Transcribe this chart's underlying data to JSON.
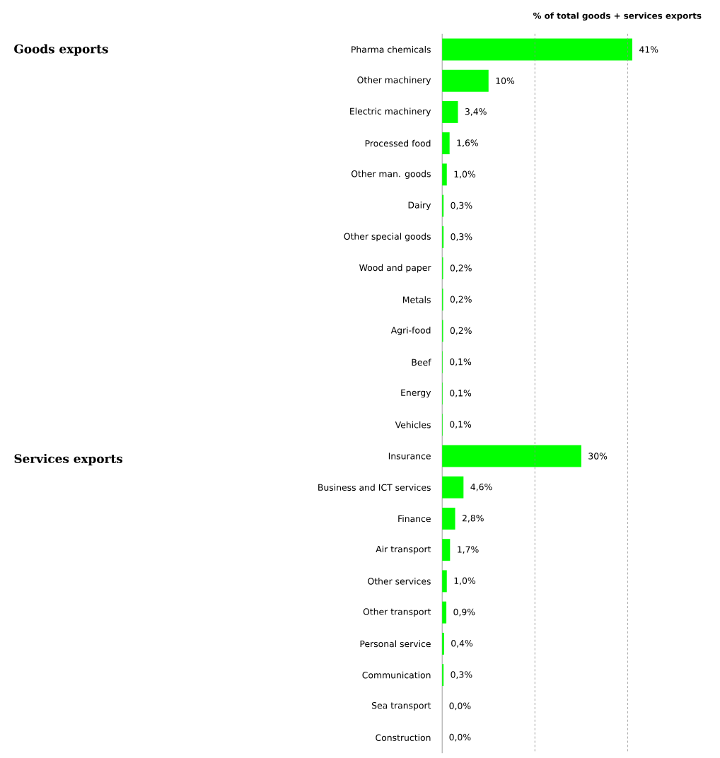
{
  "chart_data": {
    "type": "bar",
    "orientation": "horizontal",
    "title": "% of total goods + services exports",
    "categories": [
      "Pharma chemicals",
      "Other machinery",
      "Electric machinery",
      "Processed food",
      "Other man. goods",
      "Dairy",
      "Other special goods",
      "Wood and paper",
      "Metals",
      "Agri-food",
      "Beef",
      "Energy",
      "Vehicles",
      "Insurance",
      "Business and ICT services",
      "Finance",
      "Air transport",
      "Other services",
      "Other transport",
      "Personal service",
      "Communication",
      "Sea transport",
      "Construction"
    ],
    "values": [
      41,
      10,
      3.4,
      1.6,
      1.0,
      0.3,
      0.3,
      0.2,
      0.2,
      0.2,
      0.1,
      0.1,
      0.1,
      30,
      4.6,
      2.8,
      1.7,
      1.0,
      0.9,
      0.4,
      0.3,
      0.0,
      0.0
    ],
    "value_labels": [
      "41%",
      "10%",
      "3,4%",
      "1,6%",
      "1,0%",
      "0,3%",
      "0,3%",
      "0,2%",
      "0,2%",
      "0,2%",
      "0,1%",
      "0,1%",
      "0,1%",
      "30%",
      "4,6%",
      "2,8%",
      "1,7%",
      "1,0%",
      "0,9%",
      "0,4%",
      "0,3%",
      "0,0%",
      "0,0%"
    ],
    "color": "#00ff00",
    "ref_lines": [
      {
        "axis": "x",
        "value": 20,
        "color": "#8c8c8c",
        "line_style": "dashed"
      },
      {
        "axis": "x",
        "value": 40,
        "color": "#8c8c8c",
        "line_style": "dashed"
      }
    ],
    "tick_labels": "y",
    "annotations": [
      "Goods exports",
      "Services exports"
    ]
  }
}
